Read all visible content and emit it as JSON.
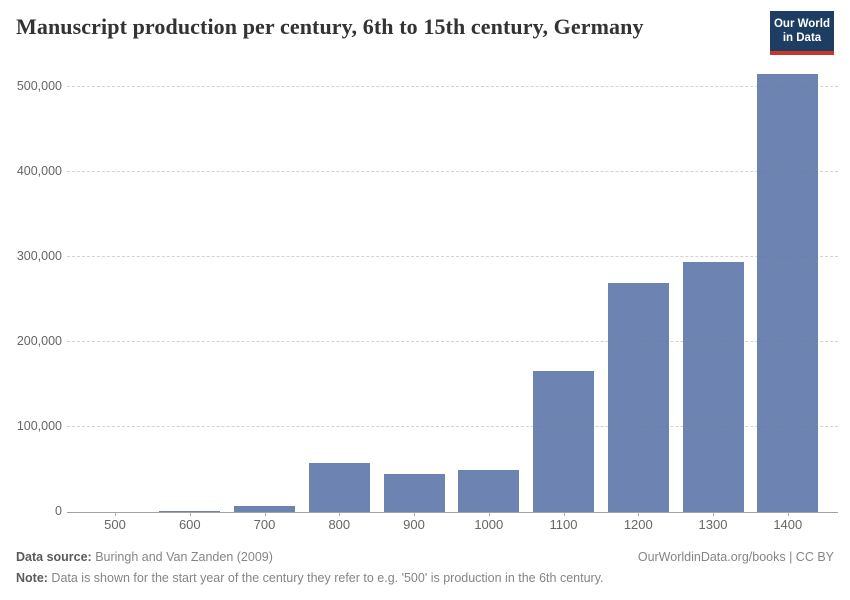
{
  "header": {
    "title": "Manuscript production per century, 6th to 15th century, Germany",
    "logo": {
      "line1": "Our World",
      "line2": "in Data"
    }
  },
  "colors": {
    "bar": "#6d84b2",
    "logo_bg": "#1d3d63",
    "logo_accent": "#c9372c",
    "axis_label": "#666666",
    "title": "#333333"
  },
  "chart_data": {
    "type": "bar",
    "title": "Manuscript production per century, 6th to 15th century, Germany",
    "categories": [
      "500",
      "600",
      "700",
      "800",
      "900",
      "1000",
      "1100",
      "1200",
      "1300",
      "1400"
    ],
    "values": [
      183,
      1465,
      7286,
      58180,
      44818,
      49556,
      165649,
      270042,
      294688,
      515594
    ],
    "xlabel": "",
    "ylabel": "",
    "ylim": [
      0,
      500000
    ],
    "yticks": [
      {
        "label": "0",
        "value": 0
      },
      {
        "label": "100,000",
        "value": 100000
      },
      {
        "label": "200,000",
        "value": 200000
      },
      {
        "label": "300,000",
        "value": 300000
      },
      {
        "label": "400,000",
        "value": 400000
      },
      {
        "label": "500,000",
        "value": 500000
      }
    ],
    "grid": "dashed-horizontal",
    "legend": "none",
    "bar_color": "#6d84b2"
  },
  "footer": {
    "source_label": "Data source:",
    "source_text": " Buringh and Van Zanden (2009)",
    "link_text": "OurWorldinData.org/books | CC BY",
    "note_label": "Note:",
    "note_text": " Data is shown for the start year of the century they refer to e.g. '500' is production in the 6th century."
  }
}
